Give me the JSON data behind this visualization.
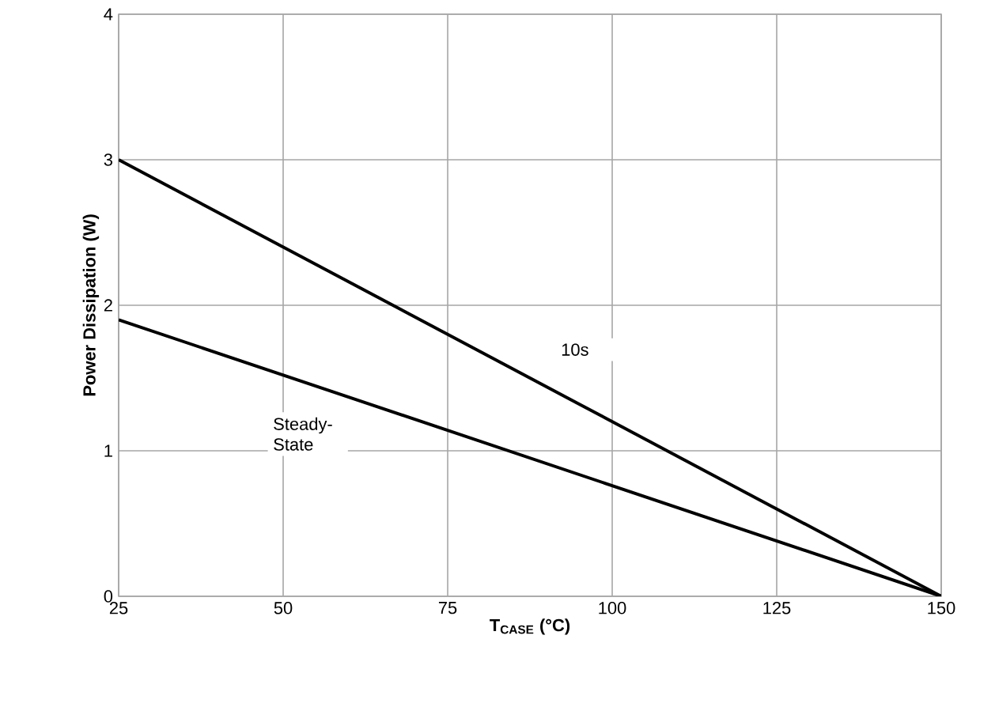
{
  "chart_data": {
    "type": "line",
    "xlabel": "T$_{CASE}$ (°C)",
    "ylabel": "Power Dissipation (W)",
    "x": [
      25,
      150
    ],
    "series": [
      {
        "name": "10s",
        "color": "#000000",
        "values": [
          3.0,
          0
        ]
      },
      {
        "name": "Steady-State",
        "color": "#000000",
        "values": [
          1.9,
          0
        ]
      }
    ],
    "xlim": [
      25,
      150
    ],
    "ylim": [
      0,
      4
    ],
    "xticks": [
      25,
      50,
      75,
      100,
      125,
      150
    ],
    "yticks": [
      0,
      1,
      2,
      3,
      4
    ],
    "grid": true,
    "line_style": "solid",
    "marker": "none"
  }
}
